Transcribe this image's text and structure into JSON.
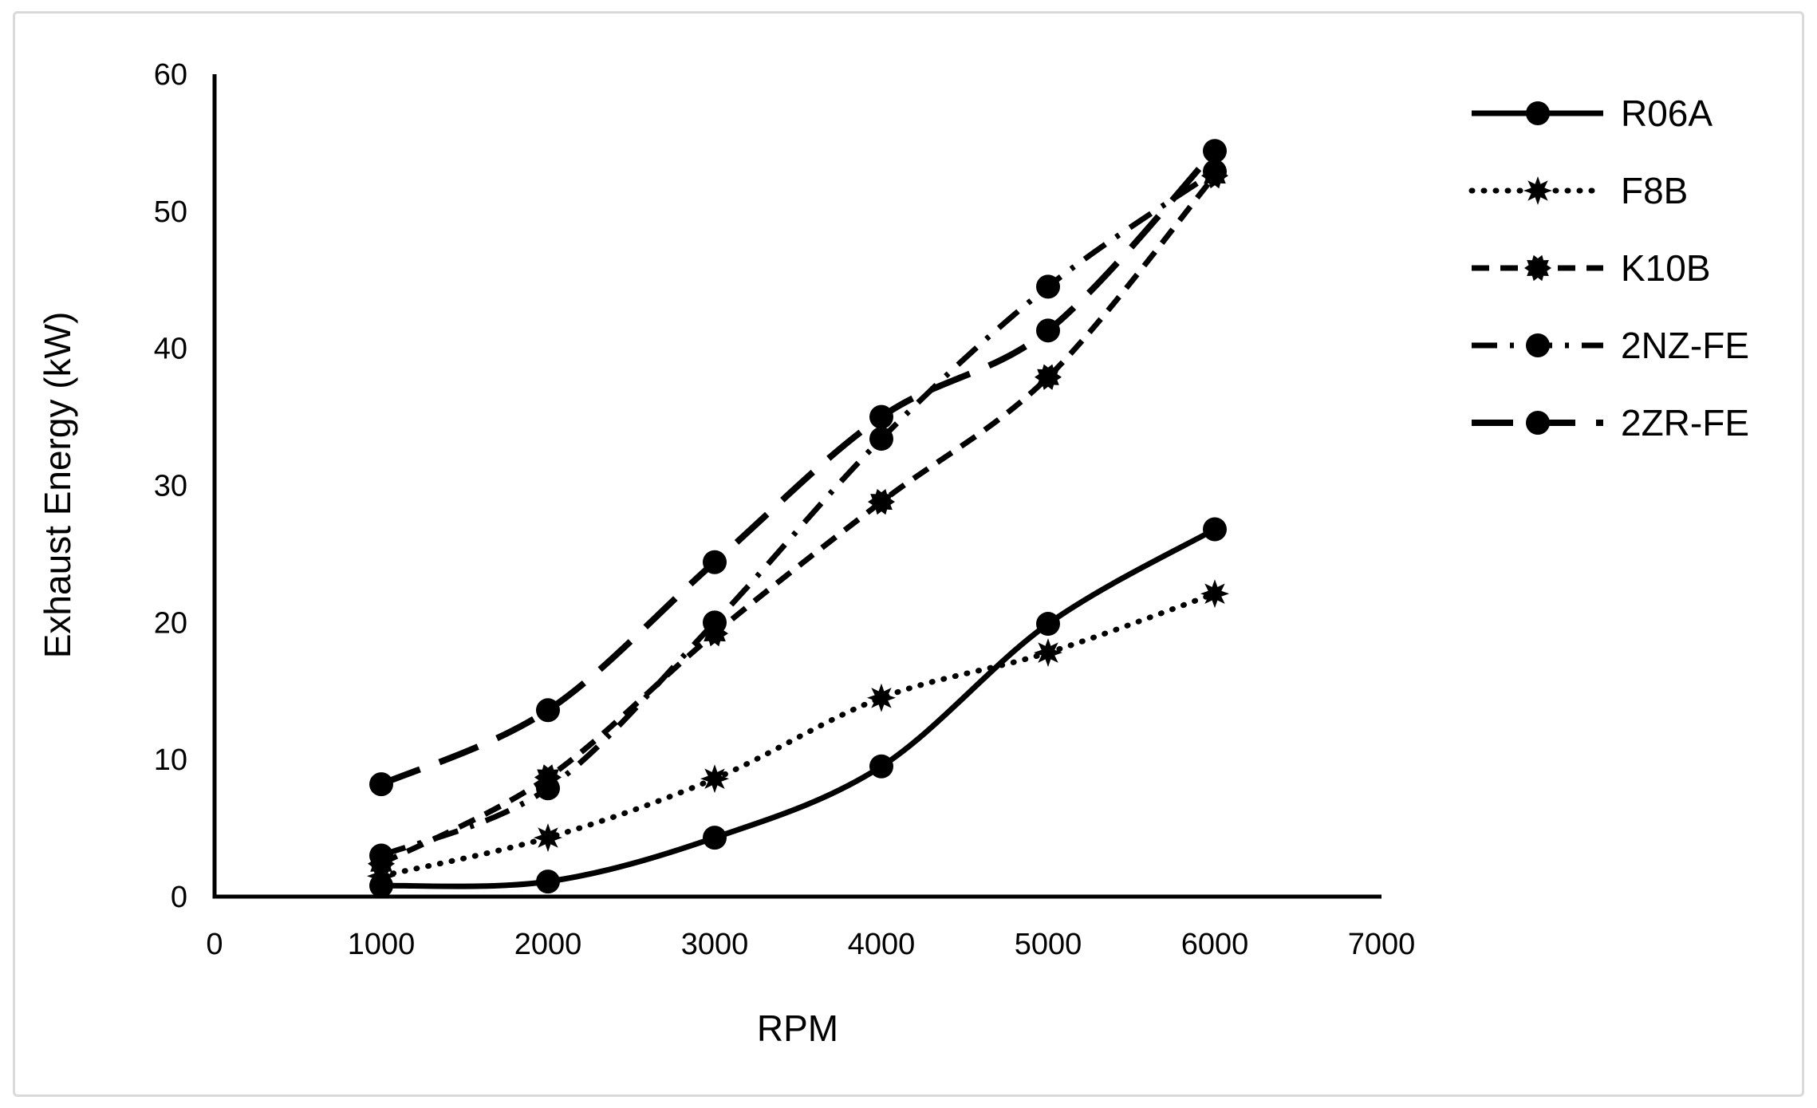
{
  "figure": {
    "background": "#ffffff",
    "border_color": "#d9d9d9",
    "ink_color": "#000000"
  },
  "chart_data": {
    "type": "line",
    "title": "",
    "xlabel": "RPM",
    "ylabel": "Exhaust Energy (kW)",
    "xlim": [
      0,
      7000
    ],
    "ylim": [
      0,
      60
    ],
    "x_ticks": [
      0,
      1000,
      2000,
      3000,
      4000,
      5000,
      6000,
      7000
    ],
    "y_ticks": [
      0,
      10,
      20,
      30,
      40,
      50,
      60
    ],
    "grid": false,
    "legend_position": "right",
    "x": [
      1000,
      2000,
      3000,
      4000,
      5000,
      6000
    ],
    "series": [
      {
        "name": "R06A",
        "line_style": "solid",
        "marker": "circle",
        "values": [
          0.8,
          1.1,
          4.3,
          9.5,
          19.9,
          26.8
        ]
      },
      {
        "name": "F8B",
        "line_style": "dotted",
        "marker": "star",
        "values": [
          1.5,
          4.3,
          8.6,
          14.5,
          17.8,
          22.1
        ]
      },
      {
        "name": "K10B",
        "line_style": "dashed",
        "marker": "star-circle",
        "values": [
          2.4,
          8.7,
          19.2,
          28.8,
          37.9,
          52.6
        ]
      },
      {
        "name": "2NZ-FE",
        "line_style": "dash-dot",
        "marker": "circle",
        "values": [
          3.0,
          7.9,
          20.0,
          33.4,
          44.5,
          52.9
        ]
      },
      {
        "name": "2ZR-FE",
        "line_style": "long-dash",
        "marker": "circle",
        "values": [
          8.2,
          13.6,
          24.4,
          35.0,
          41.3,
          54.4
        ]
      }
    ],
    "series_color": "#000000"
  }
}
